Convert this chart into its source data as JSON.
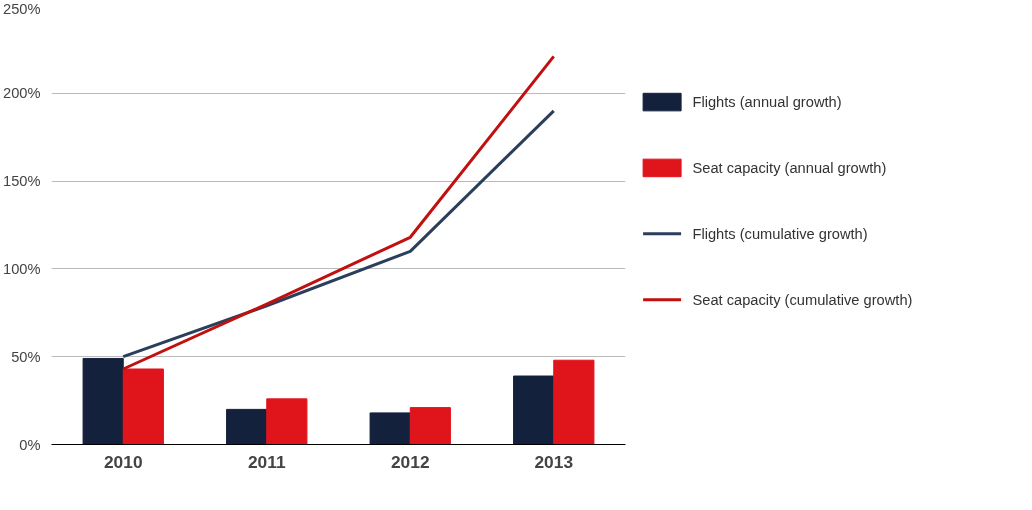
{
  "chart_data": {
    "type": "bar",
    "categories": [
      "2010",
      "2011",
      "2012",
      "2013"
    ],
    "series": [
      {
        "name": "Flights (annual growth)",
        "color": "#14213d",
        "values": [
          49,
          20,
          18,
          39
        ]
      },
      {
        "name": "Seat capacity (annual growth)",
        "color": "#e0151b",
        "values": [
          43,
          26,
          21,
          48
        ]
      },
      {
        "name": "Flights (cumulative growth)",
        "color": "#2b3f5c",
        "type": "line",
        "values": [
          50,
          79,
          110,
          190
        ]
      },
      {
        "name": "Seat capacity (cumulative growth)",
        "color": "#c0100f",
        "type": "line",
        "values": [
          43,
          80,
          118,
          221
        ]
      }
    ],
    "ylim": [
      0,
      250
    ],
    "yticks": [
      {
        "value": 0,
        "label": "0%"
      },
      {
        "value": 50,
        "label": "50%"
      },
      {
        "value": 100,
        "label": "100%"
      },
      {
        "value": 150,
        "label": "150%"
      },
      {
        "value": 200,
        "label": "200%"
      },
      {
        "value": 250,
        "label": "250%"
      }
    ],
    "grid": "y",
    "legend": "right",
    "marker": "none",
    "line_style": "solid"
  }
}
